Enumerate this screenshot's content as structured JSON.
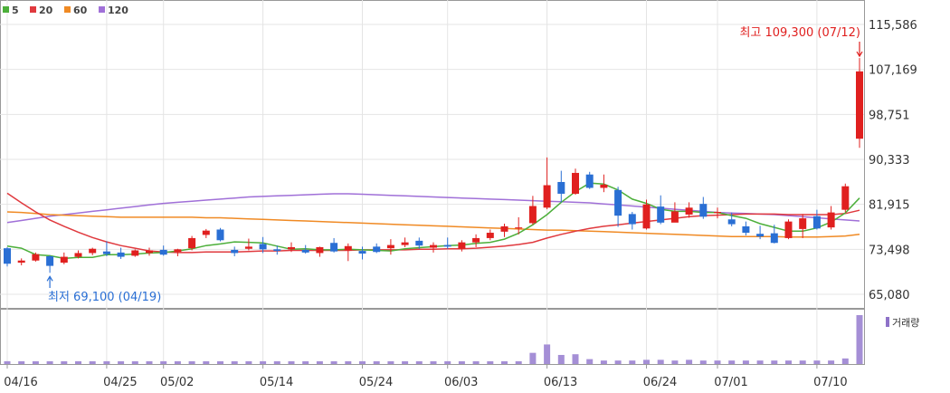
{
  "chart_data": {
    "type": "candlestick",
    "legend": [
      {
        "label": "5",
        "color": "#4caf3a"
      },
      {
        "label": "20",
        "color": "#e0393e"
      },
      {
        "label": "60",
        "color": "#f08a24"
      },
      {
        "label": "120",
        "color": "#a070d8"
      }
    ],
    "y_ticks": [
      "115,586",
      "107,169",
      "98,751",
      "90,333",
      "81,915",
      "73,498",
      "65,080"
    ],
    "ylim": [
      65080,
      115586
    ],
    "x_ticks": [
      {
        "label": "04/16",
        "i": 0
      },
      {
        "label": "04/25",
        "i": 7
      },
      {
        "label": "05/02",
        "i": 11
      },
      {
        "label": "05/14",
        "i": 18
      },
      {
        "label": "05/24",
        "i": 25
      },
      {
        "label": "06/03",
        "i": 31
      },
      {
        "label": "06/13",
        "i": 38
      },
      {
        "label": "06/24",
        "i": 45
      },
      {
        "label": "07/01",
        "i": 50
      },
      {
        "label": "07/10",
        "i": 57
      }
    ],
    "high_annotation": "최고 109,300 (07/12)",
    "low_annotation": "최저 69,100 (04/19)",
    "volume_label": "거래량",
    "up_color": "#e0201f",
    "down_color": "#2a6fd4",
    "candles": [
      [
        73700,
        73900,
        70300,
        70800
      ],
      [
        71000,
        71800,
        70500,
        71400
      ],
      [
        71400,
        72900,
        71200,
        72600
      ],
      [
        72200,
        72400,
        69100,
        70400
      ],
      [
        71000,
        72900,
        70700,
        72100
      ],
      [
        72100,
        73300,
        71800,
        72800
      ],
      [
        72800,
        73800,
        72400,
        73600
      ],
      [
        73100,
        75000,
        72200,
        72600
      ],
      [
        72900,
        73800,
        71700,
        72100
      ],
      [
        72300,
        73500,
        72100,
        73300
      ],
      [
        72800,
        73800,
        72300,
        73300
      ],
      [
        73400,
        74200,
        72300,
        72500
      ],
      [
        73000,
        73600,
        72200,
        73500
      ],
      [
        73700,
        76000,
        73300,
        75600
      ],
      [
        76200,
        77300,
        75600,
        77000
      ],
      [
        77200,
        77500,
        75000,
        75200
      ],
      [
        73400,
        74000,
        72200,
        72800
      ],
      [
        73600,
        75500,
        73300,
        74000
      ],
      [
        74500,
        75800,
        72800,
        73500
      ],
      [
        73500,
        74200,
        72500,
        73200
      ],
      [
        73500,
        74800,
        73000,
        73900
      ],
      [
        73400,
        74300,
        72700,
        72900
      ],
      [
        72800,
        74000,
        72100,
        73900
      ],
      [
        74700,
        75600,
        72900,
        73100
      ],
      [
        73300,
        74600,
        71300,
        74100
      ],
      [
        73200,
        74000,
        71600,
        72700
      ],
      [
        74000,
        74600,
        72800,
        73000
      ],
      [
        73700,
        75400,
        72500,
        74300
      ],
      [
        74300,
        75700,
        73900,
        74800
      ],
      [
        75100,
        75700,
        73600,
        74200
      ],
      [
        73800,
        74800,
        72900,
        74300
      ],
      [
        74300,
        75700,
        73600,
        74000
      ],
      [
        73600,
        75200,
        73100,
        74800
      ],
      [
        74800,
        76300,
        73900,
        75600
      ],
      [
        75600,
        77200,
        75200,
        76600
      ],
      [
        76800,
        78300,
        75800,
        77800
      ],
      [
        77400,
        79500,
        76300,
        77600
      ],
      [
        78400,
        83500,
        78100,
        81600
      ],
      [
        81300,
        90700,
        81000,
        85500
      ],
      [
        86100,
        88200,
        82300,
        83900
      ],
      [
        83900,
        88600,
        83700,
        87800
      ],
      [
        87500,
        88000,
        84800,
        85000
      ],
      [
        85000,
        87500,
        84200,
        85600
      ],
      [
        84600,
        85200,
        77700,
        79800
      ],
      [
        80100,
        80500,
        77200,
        78200
      ],
      [
        77400,
        82800,
        77200,
        81900
      ],
      [
        81500,
        83600,
        78200,
        78500
      ],
      [
        78500,
        82300,
        78600,
        80600
      ],
      [
        80000,
        82300,
        79400,
        81300
      ],
      [
        82000,
        83300,
        79200,
        79600
      ],
      [
        80300,
        81300,
        79300,
        80500
      ],
      [
        79100,
        80400,
        77800,
        78200
      ],
      [
        77800,
        78700,
        76100,
        76600
      ],
      [
        76400,
        77900,
        75400,
        75900
      ],
      [
        76500,
        78100,
        74600,
        74700
      ],
      [
        75600,
        79100,
        75400,
        78700
      ],
      [
        77300,
        80100,
        75600,
        79300
      ],
      [
        79700,
        80900,
        77200,
        77400
      ],
      [
        77600,
        81600,
        77200,
        80400
      ],
      [
        80900,
        85800,
        80400,
        85300
      ],
      [
        94200,
        109300,
        92500,
        106800
      ]
    ],
    "volumes": [
      4,
      4,
      4,
      4,
      4,
      4,
      4,
      4,
      4,
      4,
      4,
      4,
      4,
      4,
      4,
      4,
      4,
      4,
      4,
      4,
      4,
      4,
      4,
      4,
      4,
      4,
      4,
      4,
      4,
      4,
      4,
      4,
      4,
      4,
      4,
      4,
      4,
      16,
      28,
      13,
      14,
      7,
      5,
      5,
      5,
      6,
      6,
      5,
      6,
      5,
      5,
      5,
      5,
      5,
      5,
      5,
      5,
      5,
      5,
      8,
      70
    ],
    "ma5": [
      74100,
      73700,
      72500,
      72300,
      71800,
      72000,
      72000,
      72500,
      72500,
      72600,
      72800,
      72900,
      73200,
      73600,
      74200,
      74500,
      74900,
      74800,
      74700,
      74100,
      73500,
      73600,
      73400,
      73400,
      73500,
      73400,
      73300,
      73200,
      73600,
      73800,
      74000,
      74200,
      74300,
      74600,
      74800,
      75400,
      76500,
      78100,
      80000,
      82300,
      84300,
      85900,
      85700,
      84600,
      82900,
      82100,
      81000,
      80600,
      80600,
      80400,
      80400,
      79800,
      79300,
      78300,
      77600,
      76900,
      76900,
      77500,
      78600,
      80300,
      83100
    ],
    "ma20": [
      84000,
      82200,
      80500,
      79000,
      77800,
      76700,
      75700,
      74900,
      74200,
      73700,
      73200,
      73000,
      72900,
      72900,
      73000,
      73000,
      73000,
      73100,
      73200,
      73200,
      73300,
      73300,
      73300,
      73300,
      73300,
      73400,
      73400,
      73400,
      73400,
      73500,
      73500,
      73600,
      73600,
      73700,
      73900,
      74100,
      74400,
      74800,
      75600,
      76300,
      76900,
      77400,
      77800,
      78100,
      78400,
      78700,
      79000,
      79300,
      79600,
      79800,
      79900,
      80000,
      80100,
      80100,
      80100,
      80000,
      80000,
      80000,
      80000,
      80200,
      80800
    ],
    "ma60": [
      80500,
      80400,
      80200,
      80000,
      79900,
      79800,
      79700,
      79600,
      79500,
      79500,
      79500,
      79500,
      79500,
      79500,
      79400,
      79400,
      79300,
      79200,
      79100,
      79000,
      78900,
      78800,
      78700,
      78600,
      78500,
      78400,
      78300,
      78200,
      78100,
      78000,
      77900,
      77800,
      77700,
      77600,
      77500,
      77400,
      77300,
      77200,
      77100,
      77100,
      77000,
      76900,
      76800,
      76700,
      76600,
      76500,
      76400,
      76300,
      76200,
      76100,
      76000,
      75900,
      75900,
      75900,
      75900,
      75800,
      75800,
      75800,
      75900,
      76000,
      76300
    ],
    "ma120": [
      78500,
      78900,
      79300,
      79700,
      80000,
      80300,
      80600,
      80900,
      81200,
      81500,
      81800,
      82100,
      82300,
      82500,
      82700,
      82900,
      83100,
      83300,
      83400,
      83500,
      83600,
      83700,
      83800,
      83900,
      83900,
      83800,
      83700,
      83600,
      83500,
      83400,
      83300,
      83200,
      83100,
      83000,
      82900,
      82800,
      82700,
      82600,
      82500,
      82400,
      82300,
      82200,
      82000,
      81800,
      81600,
      81400,
      81200,
      81000,
      80800,
      80600,
      80400,
      80300,
      80200,
      80100,
      80000,
      79800,
      79600,
      79400,
      79200,
      79000,
      78800
    ]
  }
}
